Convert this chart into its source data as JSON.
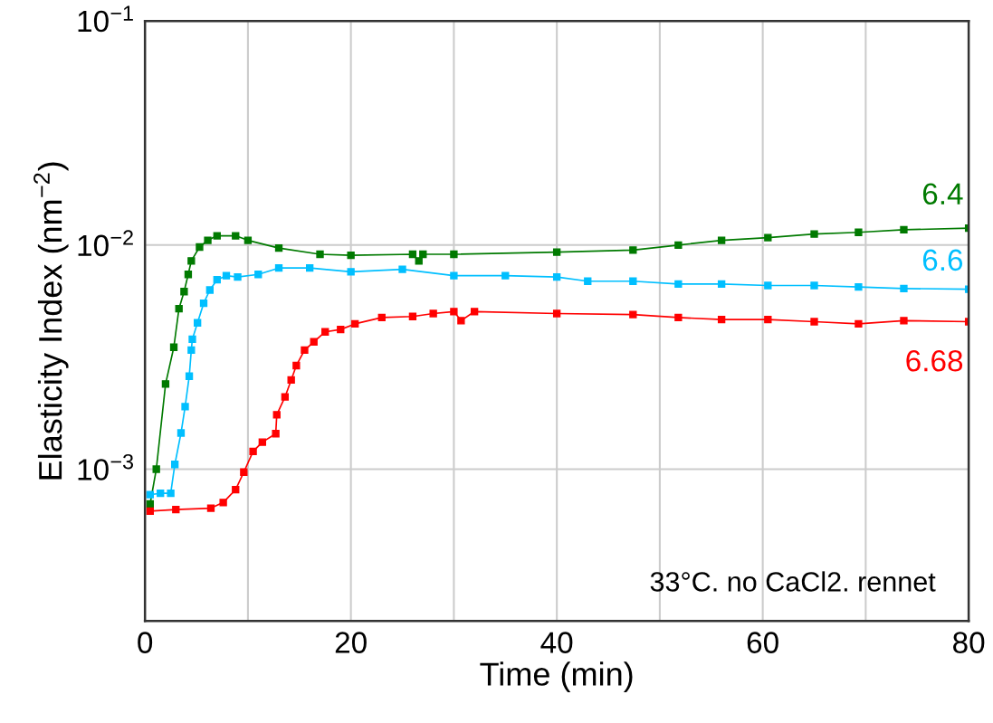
{
  "chart_data": {
    "type": "line",
    "xlabel": "Time (min)",
    "ylabel": "Elasticity Index (nm$^{−2}$)",
    "log": "y",
    "xlim": [
      0,
      80
    ],
    "ylim": [
      0.00021,
      0.1
    ],
    "xticks": [
      0,
      {
        "value": 10,
        "label": null
      },
      20,
      {
        "value": 30,
        "label": null
      },
      40,
      {
        "value": 50,
        "label": null
      },
      60,
      {
        "value": 70,
        "label": null
      },
      80
    ],
    "yticks": [
      {
        "value": 0.001,
        "label": "10$^{−3}$"
      },
      {
        "value": 0.01,
        "label": "10$^{−2}$"
      },
      {
        "value": 0.1,
        "label": "10$^{−1}$"
      }
    ],
    "grid": true,
    "marker": "square",
    "line_style": "solid",
    "annotations": [
      "33°C. no CaCl2. rennet"
    ],
    "series": [
      {
        "name": "6.4",
        "color": "#007a00",
        "x": [
          0.5,
          1.1,
          2.0,
          2.8,
          3.3,
          3.8,
          4.2,
          4.5,
          5.3,
          6.1,
          7.0,
          8.8,
          10,
          13,
          17,
          20,
          26,
          26.6,
          27,
          30,
          40,
          47.4,
          51.8,
          56,
          60.5,
          65,
          69.3,
          73.7,
          80
        ],
        "values": [
          0.0007,
          0.001,
          0.0024,
          0.0035,
          0.0052,
          0.0062,
          0.0074,
          0.0085,
          0.0098,
          0.0105,
          0.011,
          0.011,
          0.0105,
          0.0097,
          0.0091,
          0.009,
          0.0091,
          0.0085,
          0.0091,
          0.0091,
          0.0093,
          0.0095,
          0.01,
          0.0105,
          0.0108,
          0.0112,
          0.0114,
          0.0117,
          0.0119
        ]
      },
      {
        "name": "6.6",
        "color": "#00bfff",
        "x": [
          0.5,
          1.5,
          2.5,
          2.9,
          3.5,
          3.9,
          4.3,
          4.5,
          4.6,
          5.1,
          5.7,
          6.3,
          7.0,
          7.9,
          9,
          11,
          13,
          16,
          20,
          25,
          30,
          35,
          40,
          43,
          47.4,
          51.8,
          56,
          60.5,
          65,
          69.3,
          73.7,
          80
        ],
        "values": [
          0.00077,
          0.00078,
          0.00078,
          0.00105,
          0.00145,
          0.0019,
          0.0026,
          0.0034,
          0.0038,
          0.0045,
          0.0055,
          0.0063,
          0.007,
          0.0073,
          0.0072,
          0.0074,
          0.0079,
          0.0079,
          0.0076,
          0.0078,
          0.0073,
          0.0073,
          0.0072,
          0.0069,
          0.0069,
          0.0067,
          0.0067,
          0.0066,
          0.0066,
          0.0065,
          0.0064,
          0.00635
        ]
      },
      {
        "name": "6.68",
        "color": "#ff0000",
        "x": [
          0.5,
          3,
          6.4,
          7.6,
          8.8,
          9.6,
          10.5,
          11.4,
          12.7,
          12.8,
          13.6,
          14.2,
          14.7,
          15.5,
          16.4,
          17.5,
          19,
          20.4,
          23,
          26,
          28,
          30,
          30.7,
          32,
          40,
          47.4,
          51.8,
          56,
          60.5,
          65,
          69.3,
          73.7,
          80
        ],
        "values": [
          0.00065,
          0.00066,
          0.00067,
          0.00071,
          0.00081,
          0.00097,
          0.0012,
          0.00132,
          0.00144,
          0.00175,
          0.0021,
          0.0025,
          0.0029,
          0.0034,
          0.0037,
          0.0041,
          0.0042,
          0.00445,
          0.00475,
          0.0048,
          0.00495,
          0.00505,
          0.0046,
          0.00505,
          0.00495,
          0.0049,
          0.00475,
          0.00465,
          0.00465,
          0.00455,
          0.00445,
          0.0046,
          0.00455
        ]
      }
    ]
  }
}
